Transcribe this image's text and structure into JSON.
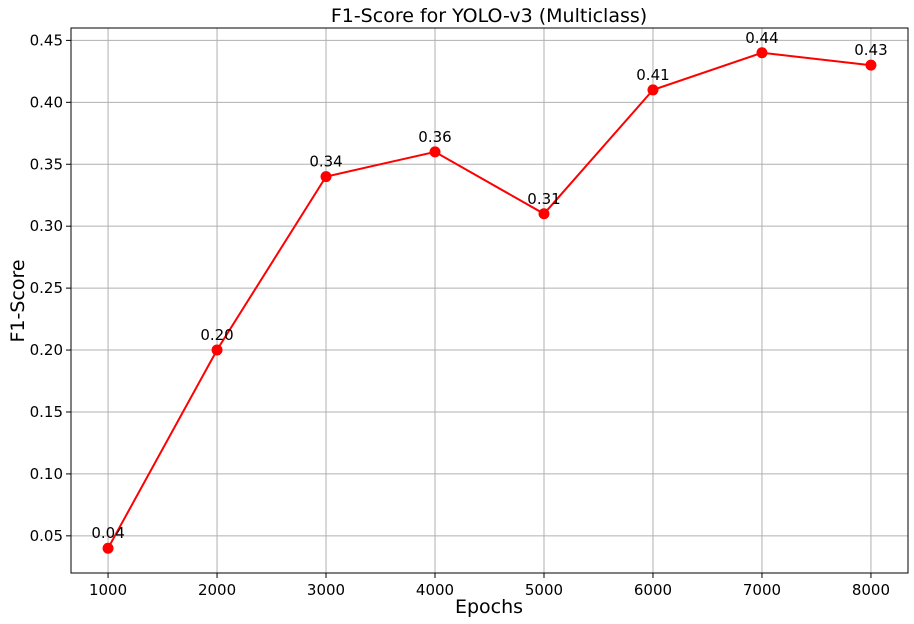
{
  "chart_data": {
    "type": "line",
    "title": "F1-Score for YOLO-v3 (Multiclass)",
    "xlabel": "Epochs",
    "ylabel": "F1-Score",
    "x": [
      1000,
      2000,
      3000,
      4000,
      5000,
      6000,
      7000,
      8000
    ],
    "series": [
      {
        "values": [
          0.04,
          0.2,
          0.34,
          0.36,
          0.31,
          0.41,
          0.44,
          0.43
        ],
        "data_labels": [
          "0.04",
          "0.20",
          "0.34",
          "0.36",
          "0.31",
          "0.41",
          "0.44",
          "0.43"
        ],
        "color": "#ff0000",
        "marker": "circle"
      }
    ],
    "xticks": [
      1000,
      2000,
      3000,
      4000,
      5000,
      6000,
      7000,
      8000
    ],
    "xtick_labels": [
      "1000",
      "2000",
      "3000",
      "4000",
      "5000",
      "6000",
      "7000",
      "8000"
    ],
    "yticks": [
      0.05,
      0.1,
      0.15,
      0.2,
      0.25,
      0.3,
      0.35,
      0.4,
      0.45
    ],
    "ytick_labels": [
      "0.05",
      "0.10",
      "0.15",
      "0.20",
      "0.25",
      "0.30",
      "0.35",
      "0.40",
      "0.45"
    ],
    "xlim": [
      660,
      8340
    ],
    "ylim": [
      0.02,
      0.46
    ],
    "grid": true,
    "legend": "none"
  }
}
